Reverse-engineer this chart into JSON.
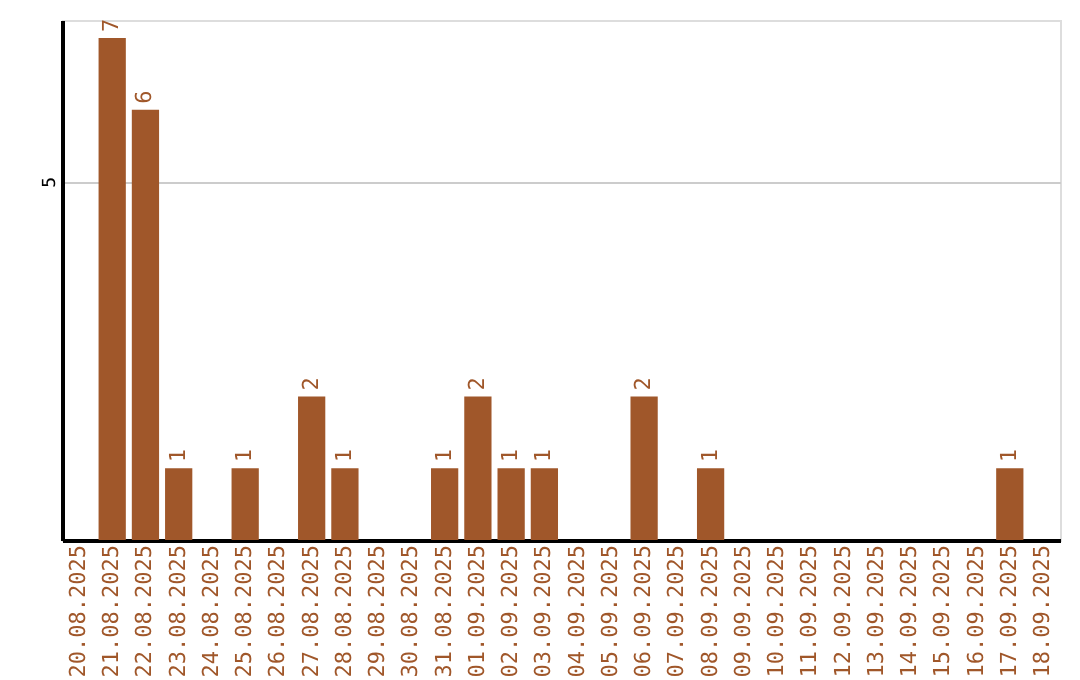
{
  "chart_data": {
    "type": "bar",
    "categories": [
      "20.08.2025",
      "21.08.2025",
      "22.08.2025",
      "23.08.2025",
      "24.08.2025",
      "25.08.2025",
      "26.08.2025",
      "27.08.2025",
      "28.08.2025",
      "29.08.2025",
      "30.08.2025",
      "31.08.2025",
      "01.09.2025",
      "02.09.2025",
      "03.09.2025",
      "04.09.2025",
      "05.09.2025",
      "06.09.2025",
      "07.09.2025",
      "08.09.2025",
      "09.09.2025",
      "10.09.2025",
      "11.09.2025",
      "12.09.2025",
      "13.09.2025",
      "14.09.2025",
      "15.09.2025",
      "16.09.2025",
      "17.09.2025",
      "18.09.2025"
    ],
    "values": [
      null,
      7,
      6,
      1,
      null,
      1,
      null,
      2,
      1,
      null,
      null,
      1,
      2,
      1,
      1,
      null,
      null,
      2,
      null,
      1,
      null,
      null,
      null,
      null,
      null,
      null,
      null,
      null,
      1,
      null
    ],
    "color": "#a0572a",
    "ylim": [
      0,
      7.25
    ],
    "yticks": [
      5
    ],
    "grid": "y",
    "data_labels": true
  }
}
